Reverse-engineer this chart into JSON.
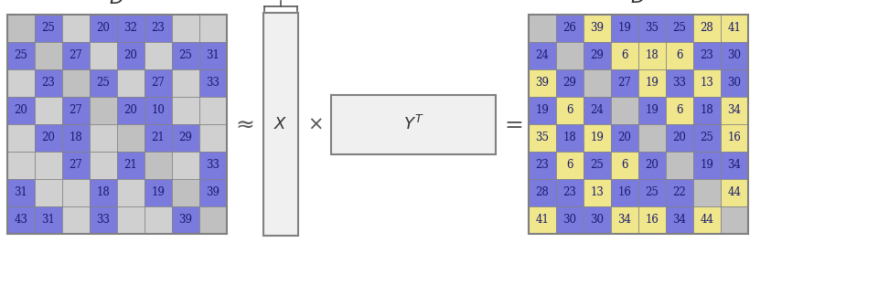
{
  "D_matrix": [
    [
      null,
      25,
      null,
      20,
      32,
      23,
      null,
      null
    ],
    [
      25,
      null,
      27,
      null,
      20,
      null,
      25,
      31
    ],
    [
      null,
      23,
      null,
      25,
      null,
      27,
      null,
      33
    ],
    [
      20,
      null,
      27,
      null,
      20,
      10,
      null,
      null
    ],
    [
      null,
      20,
      18,
      null,
      null,
      21,
      29,
      null
    ],
    [
      null,
      null,
      27,
      null,
      21,
      null,
      null,
      33
    ],
    [
      31,
      null,
      null,
      18,
      null,
      19,
      null,
      39
    ],
    [
      43,
      31,
      null,
      33,
      null,
      null,
      39,
      null
    ]
  ],
  "D_colors": [
    [
      "gray",
      "blue",
      "gray",
      "blue",
      "blue",
      "blue",
      "gray",
      "gray"
    ],
    [
      "blue",
      "gray",
      "blue",
      "gray",
      "blue",
      "gray",
      "blue",
      "blue"
    ],
    [
      "gray",
      "blue",
      "gray",
      "blue",
      "gray",
      "blue",
      "gray",
      "blue"
    ],
    [
      "blue",
      "gray",
      "blue",
      "gray",
      "blue",
      "blue",
      "gray",
      "gray"
    ],
    [
      "gray",
      "blue",
      "blue",
      "gray",
      "gray",
      "blue",
      "blue",
      "gray"
    ],
    [
      "gray",
      "gray",
      "blue",
      "gray",
      "blue",
      "gray",
      "gray",
      "blue"
    ],
    [
      "blue",
      "gray",
      "gray",
      "blue",
      "gray",
      "blue",
      "gray",
      "blue"
    ],
    [
      "blue",
      "blue",
      "gray",
      "blue",
      "gray",
      "gray",
      "blue",
      "gray"
    ]
  ],
  "Dhat_matrix": [
    [
      null,
      26,
      39,
      19,
      35,
      25,
      28,
      41
    ],
    [
      24,
      null,
      29,
      6,
      18,
      6,
      23,
      30
    ],
    [
      39,
      29,
      null,
      27,
      19,
      33,
      13,
      30
    ],
    [
      19,
      6,
      24,
      null,
      19,
      6,
      18,
      34
    ],
    [
      35,
      18,
      19,
      20,
      null,
      20,
      25,
      16
    ],
    [
      23,
      6,
      25,
      6,
      20,
      null,
      19,
      34
    ],
    [
      28,
      23,
      13,
      16,
      25,
      22,
      null,
      44
    ],
    [
      41,
      30,
      30,
      34,
      16,
      34,
      44,
      null
    ]
  ],
  "Dhat_colors": [
    [
      "gray",
      "blue",
      "yellow",
      "blue",
      "blue",
      "blue",
      "yellow",
      "yellow"
    ],
    [
      "blue",
      "gray",
      "blue",
      "yellow",
      "yellow",
      "yellow",
      "blue",
      "blue"
    ],
    [
      "yellow",
      "blue",
      "gray",
      "blue",
      "yellow",
      "blue",
      "yellow",
      "blue"
    ],
    [
      "blue",
      "yellow",
      "blue",
      "gray",
      "blue",
      "yellow",
      "blue",
      "yellow"
    ],
    [
      "yellow",
      "blue",
      "yellow",
      "blue",
      "gray",
      "blue",
      "blue",
      "yellow"
    ],
    [
      "blue",
      "yellow",
      "blue",
      "yellow",
      "blue",
      "gray",
      "blue",
      "blue"
    ],
    [
      "blue",
      "blue",
      "yellow",
      "blue",
      "blue",
      "blue",
      "gray",
      "yellow"
    ],
    [
      "yellow",
      "blue",
      "blue",
      "yellow",
      "yellow",
      "blue",
      "yellow",
      "gray"
    ]
  ],
  "color_blue": "#7b7bde",
  "color_yellow": "#f0e68c",
  "color_gray": "#d0d0d0",
  "color_diag": "#c0c0c0",
  "color_box_bg": "#f0f0f0",
  "color_border": "#808080",
  "color_text_dark": "#1a1a6e",
  "color_symbol": "#555555"
}
